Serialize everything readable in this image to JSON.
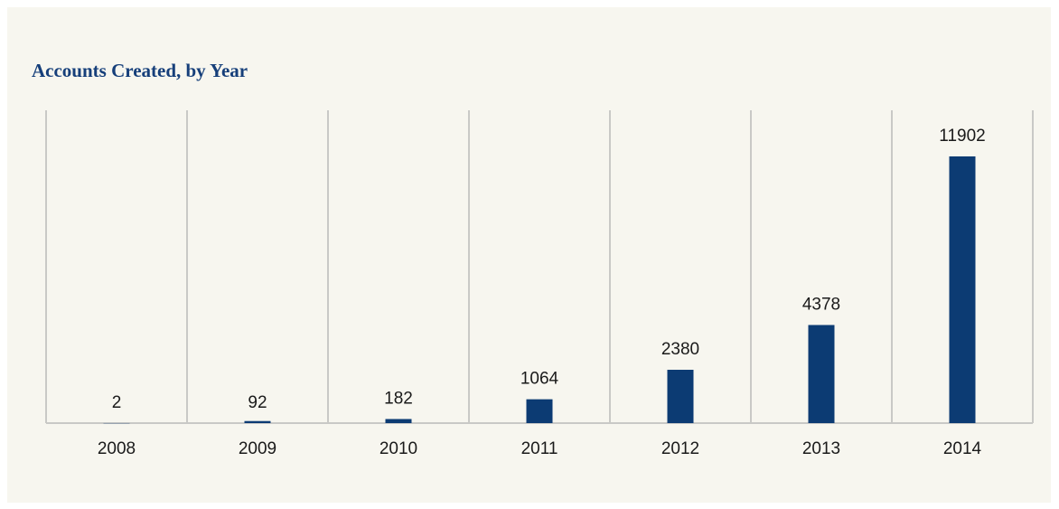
{
  "chart_data": {
    "type": "bar",
    "title": "Accounts Created, by Year",
    "categories": [
      "2008",
      "2009",
      "2010",
      "2011",
      "2012",
      "2013",
      "2014"
    ],
    "values": [
      2,
      92,
      182,
      1064,
      2380,
      4378,
      11902
    ],
    "ylim": [
      0,
      13000
    ],
    "grid": "vertical separators between categories",
    "bar_color": "#0c3b73",
    "background_color": "#f7f6ef"
  }
}
